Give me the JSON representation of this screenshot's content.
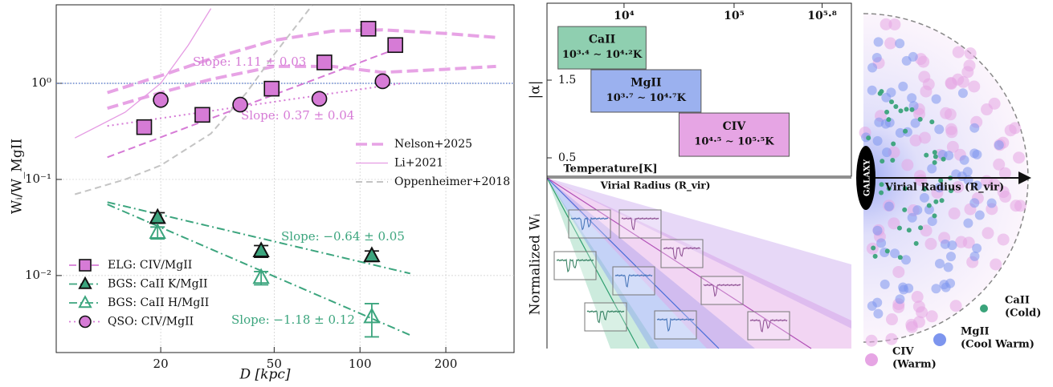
{
  "chart_data": [
    {
      "type": "scatter",
      "xlabel": "D [kpc]",
      "ylabel": "Wᵢ/W_MgII",
      "xscale": "log",
      "yscale": "log",
      "xlim": [
        8.6,
        347
      ],
      "ylim": [
        0.00158,
        6.56
      ],
      "xticks": [
        20,
        50,
        100,
        200
      ],
      "yticks": [
        {
          "value": 0.01,
          "label": "10⁻²"
        },
        {
          "value": 0.1,
          "label": "10⁻¹"
        },
        {
          "value": 1,
          "label": "10⁰"
        }
      ],
      "grid": true,
      "hline": 1,
      "hline_color": "#4a6fc7",
      "legend": "lower left",
      "model_legend": "center right",
      "series": [
        {
          "name": "ELG: CIV/MgII",
          "color": "#d67bd6",
          "marker": "square",
          "filled": true,
          "dash": "9,5",
          "x": [
            17.5,
            28,
            49,
            75,
            107,
            133
          ],
          "values": [
            0.35,
            0.47,
            0.88,
            1.65,
            3.7,
            2.5
          ],
          "errors": [
            0.04,
            0.05,
            0.08,
            0.15,
            0.45,
            0.3
          ]
        },
        {
          "name": "BGS: CaII K/MgII",
          "color": "#3ca57e",
          "marker": "triangle",
          "filled": true,
          "dash": "10,4,2,4",
          "x": [
            19.5,
            45,
            110
          ],
          "values": [
            0.04,
            0.018,
            0.016
          ],
          "errors": [
            0.005,
            0.0025,
            0.002
          ]
        },
        {
          "name": "BGS: CaII H/MgII",
          "color": "#3ca57e",
          "marker": "triangle",
          "filled": false,
          "dash": "10,4,2,4",
          "x": [
            19.5,
            45,
            110
          ],
          "values": [
            0.028,
            0.0095,
            0.0037
          ],
          "errors": [
            0.004,
            0.0015,
            0.0014
          ]
        },
        {
          "name": "QSO: CIV/MgII",
          "color": "#d67bd6",
          "marker": "circle",
          "filled": true,
          "dash": "2,4",
          "x": [
            20,
            38,
            72,
            120
          ],
          "values": [
            0.67,
            0.6,
            0.69,
            1.05
          ]
        }
      ],
      "fits": [
        {
          "x": [
            13,
            140
          ],
          "values": [
            0.17,
            2.4
          ],
          "label": "Slope: 1.11 ± 0.03"
        },
        {
          "x": [
            13,
            150
          ],
          "values": [
            0.058,
            0.0105
          ],
          "label": "Slope: −0.64 ± 0.05"
        },
        {
          "x": [
            13,
            150
          ],
          "values": [
            0.055,
            0.0024
          ],
          "label": "Slope: −1.18 ± 0.12"
        },
        {
          "x": [
            13,
            140
          ],
          "values": [
            0.36,
            1.0
          ],
          "label": "Slope: 0.37 ± 0.04"
        }
      ],
      "models": [
        {
          "name": "Nelson+2025",
          "color": "#e7a3e5",
          "dash": "14,6",
          "width": 4,
          "curves": [
            {
              "x": [
                13,
                20,
                30,
                50,
                80,
                120,
                200,
                300
              ],
              "values": [
                0.8,
                1.2,
                1.8,
                2.8,
                3.5,
                3.6,
                3.3,
                3.0
              ]
            },
            {
              "x": [
                13,
                20,
                30,
                50,
                80,
                120,
                200,
                300
              ],
              "values": [
                0.55,
                0.8,
                1.1,
                1.5,
                1.5,
                1.3,
                1.4,
                1.5
              ]
            }
          ]
        },
        {
          "name": "Li+2021",
          "color": "#e59be3",
          "dash": "",
          "width": 1.3,
          "curves": [
            {
              "x": [
                10,
                15,
                20,
                25,
                30
              ],
              "values": [
                0.27,
                0.5,
                1.0,
                2.5,
                6.0
              ]
            }
          ]
        },
        {
          "name": "Oppenheimer+2018",
          "color": "#c4c4c4",
          "dash": "8,5",
          "width": 2,
          "curves": [
            {
              "x": [
                10,
                15,
                20,
                30,
                40,
                50,
                68
              ],
              "values": [
                0.07,
                0.1,
                0.14,
                0.3,
                0.8,
                2.0,
                6.5
              ]
            }
          ]
        }
      ]
    },
    {
      "type": "range-box",
      "xlabel": "Temperature[K]",
      "ylabel": "|α|",
      "xscale": "log",
      "xlim": [
        1995,
        1164000
      ],
      "ylim": [
        0.263,
        2.49
      ],
      "xticks": [
        {
          "value": 10000,
          "label": "10⁴"
        },
        {
          "value": 100000,
          "label": "10⁵"
        },
        {
          "value": 630957,
          "label": "10⁵·⁸"
        }
      ],
      "yticks": [
        0.5,
        1.5
      ],
      "boxes": [
        {
          "name": "CaII",
          "range_label": "10³·⁴ ∼ 10⁴·²K",
          "color": "#8fcfb0",
          "x": [
            2512,
            15849
          ],
          "y": [
            1.644,
            2.19
          ]
        },
        {
          "name": "MgII",
          "range_label": "10³·⁷ ∼ 10⁴·⁷K",
          "color": "#9bb1ef",
          "x": [
            5012,
            50119
          ],
          "y": [
            1.088,
            1.634
          ]
        },
        {
          "name": "CIV",
          "range_label": "10⁴·⁵ ∼ 10⁵·⁵K",
          "color": "#e6a5e4",
          "x": [
            31623,
            316228
          ],
          "y": [
            0.52,
            1.077
          ]
        }
      ]
    }
  ],
  "schematic": {
    "xlabel": "Virial Radius (R_vir)",
    "ylabel": "Normalized Wᵢ"
  },
  "halo": {
    "galaxy": "GALAXY",
    "axis_label": "Virial Radius (R_vir)",
    "legend": [
      {
        "name": "CaII",
        "note": "(Cold)",
        "color": "#3aa37a"
      },
      {
        "name": "MgII",
        "note": "(Cool Warm)",
        "color": "#7d95ee"
      },
      {
        "name": "CIV",
        "note": "(Warm)",
        "color": "#e6a5e4"
      }
    ]
  }
}
